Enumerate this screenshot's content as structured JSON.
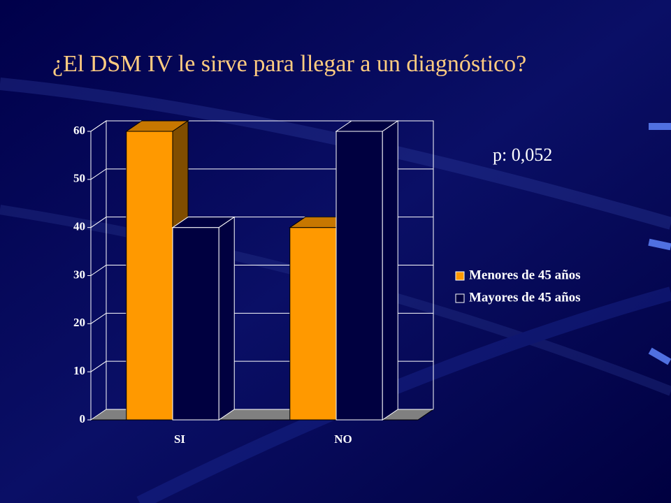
{
  "chart_data": {
    "type": "bar3d",
    "title": "¿El DSM IV le sirve para llegar a un diagnóstico?",
    "annotation": "p: 0,052",
    "categories": [
      "SI",
      "NO"
    ],
    "series": [
      {
        "name": "Menores de 45 años",
        "color": "#ff9900",
        "values": [
          60,
          40
        ]
      },
      {
        "name": "Mayores de 45 años",
        "color": "#000040",
        "values": [
          40,
          60
        ]
      }
    ],
    "ylim": [
      0,
      60
    ],
    "yticks": [
      0,
      10,
      20,
      30,
      40,
      50,
      60
    ],
    "grid": true
  }
}
